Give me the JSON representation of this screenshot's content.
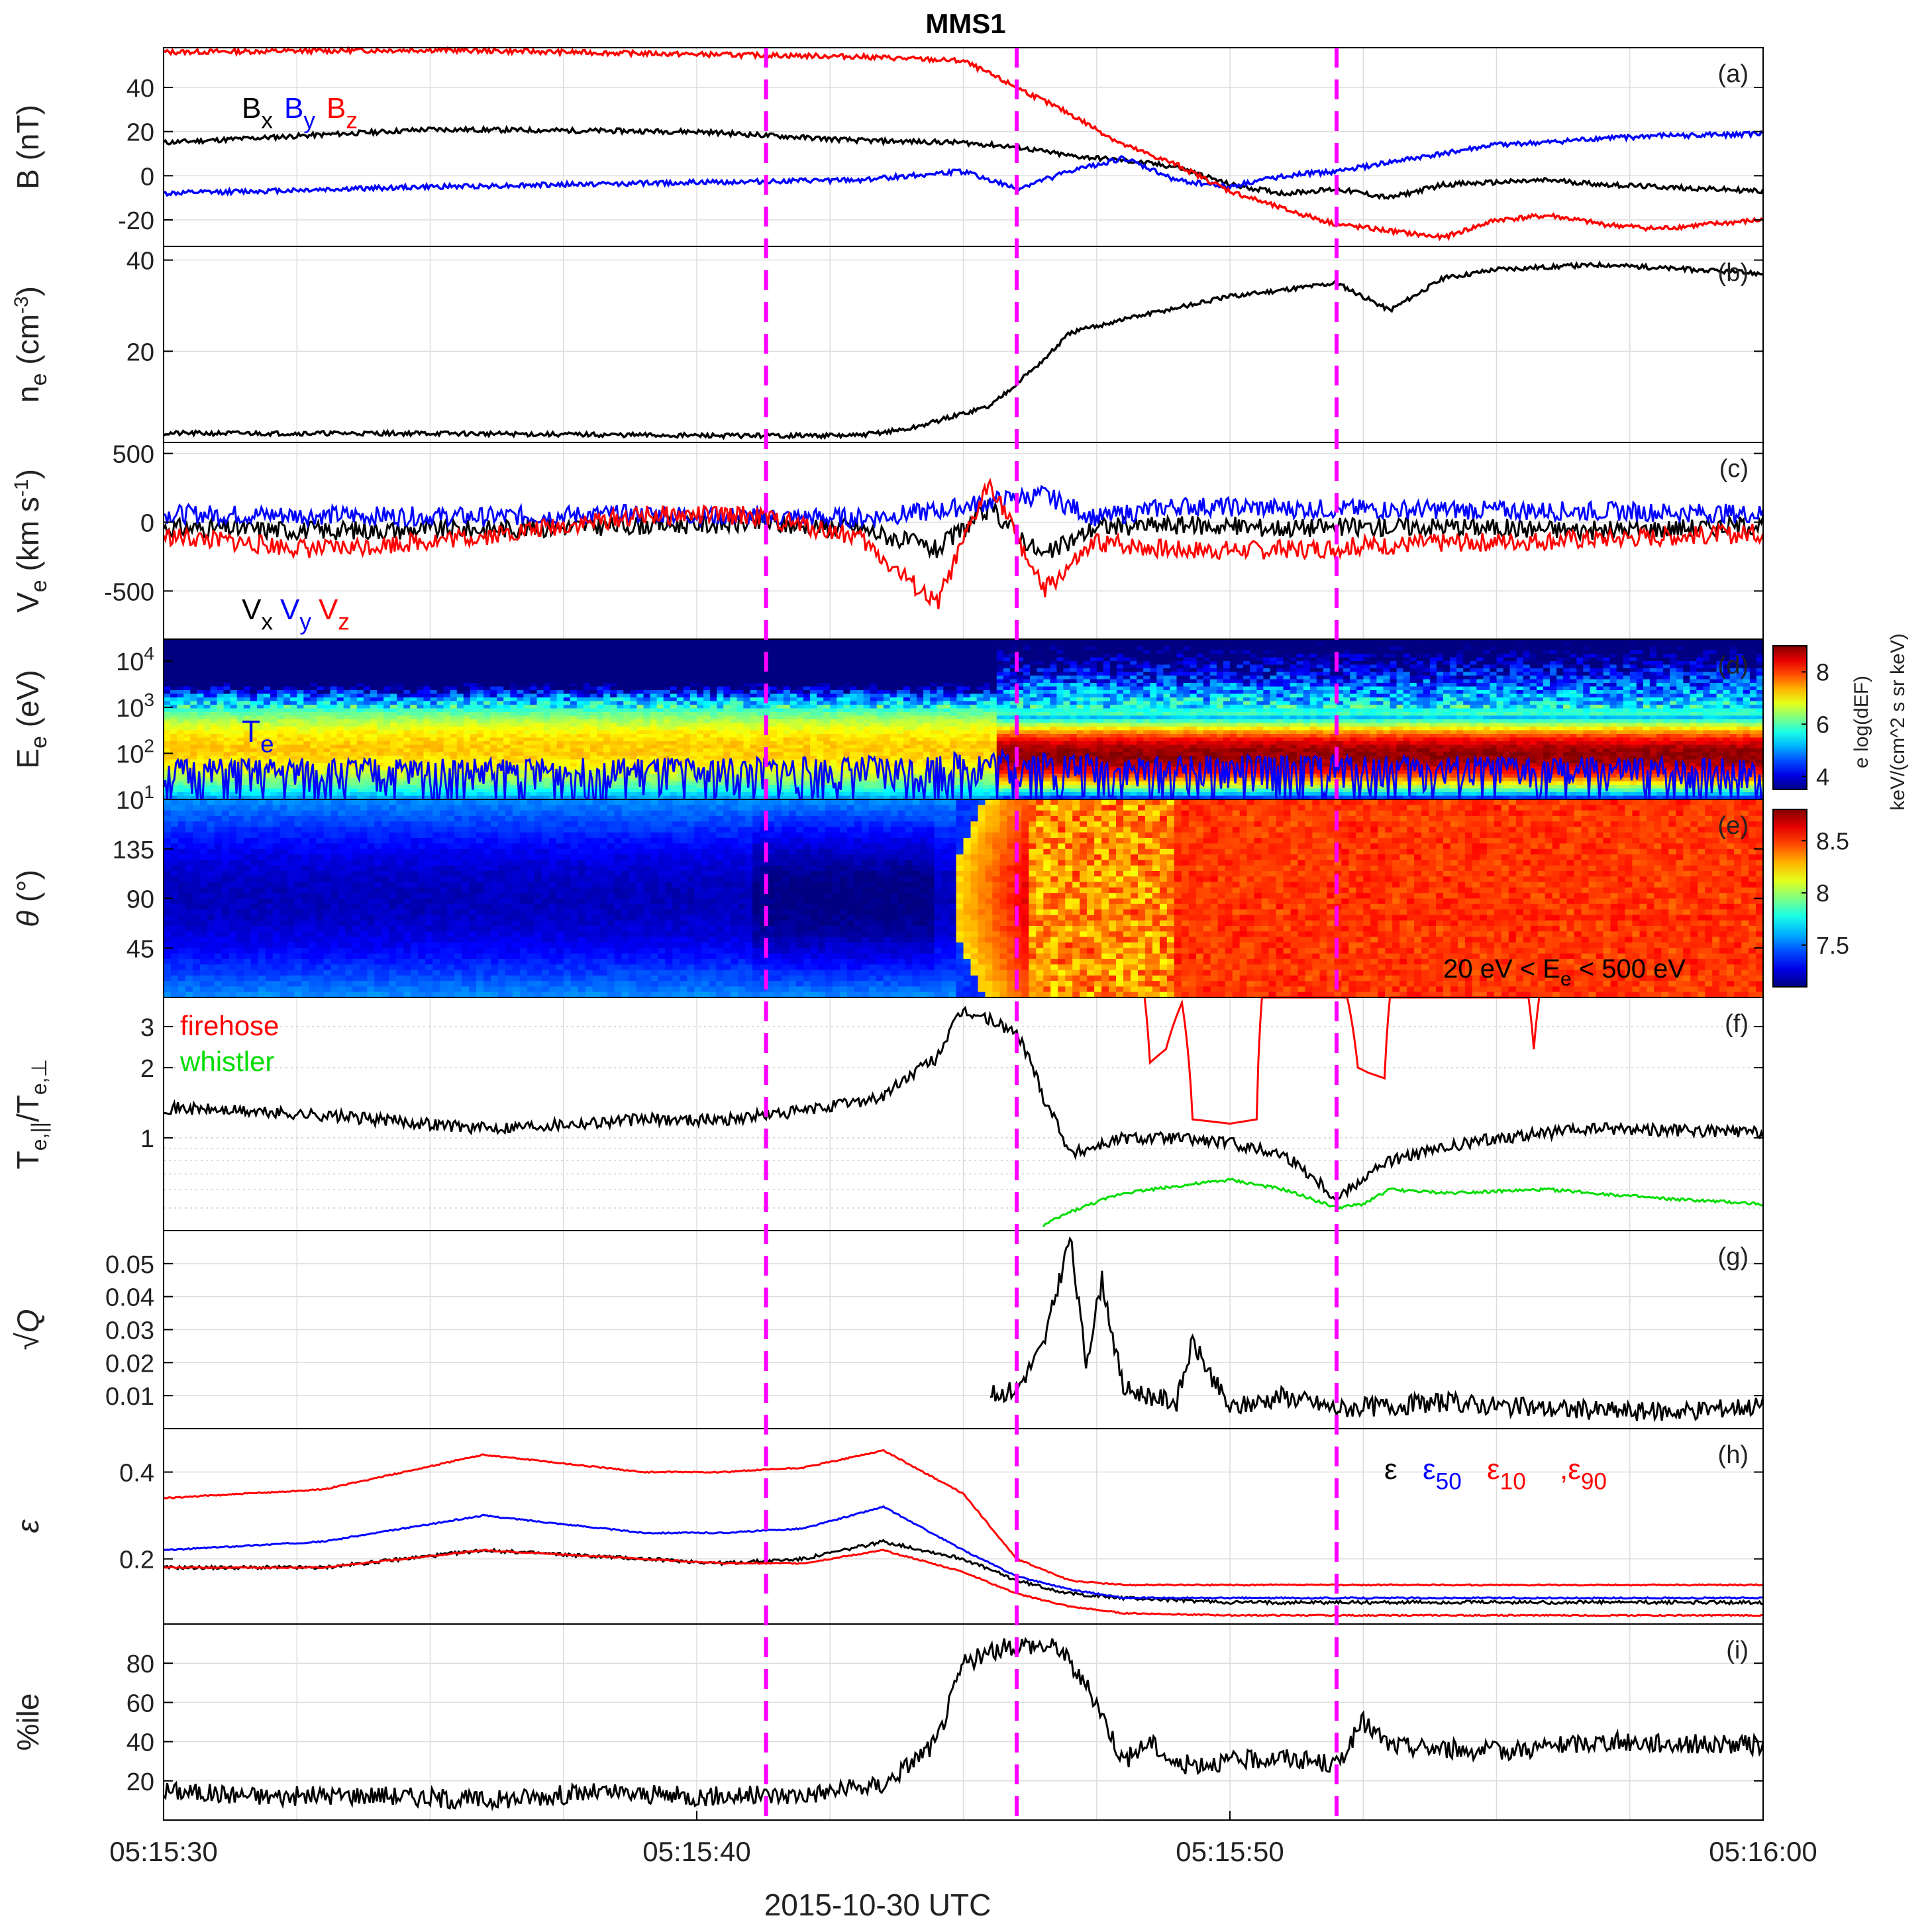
{
  "figure": {
    "title": "MMS1",
    "xlabel": "2015-10-30 UTC",
    "xticks": [
      "05:15:30",
      "05:15:40",
      "05:15:50",
      "05:16:00"
    ],
    "colors": {
      "black": "#000000",
      "blue": "#0000ff",
      "red": "#ff0000",
      "green": "#00dd00",
      "magenta": "#ff00ff"
    }
  },
  "chart_data": [
    {
      "panel": "(a)",
      "type": "line",
      "ylabel": "B (nT)",
      "ylim": [
        -32,
        58
      ],
      "yticks": [
        "40",
        "20",
        "0",
        "-20"
      ],
      "ytick_values": [
        40,
        20,
        0,
        -20
      ],
      "legend": [
        {
          "base": "B",
          "sub": "x",
          "color": "#000000"
        },
        {
          "base": "B",
          "sub": "y",
          "color": "#0000ff"
        },
        {
          "base": "B",
          "sub": "z",
          "color": "#ff0000"
        }
      ],
      "x_seconds": [
        0,
        5,
        10,
        13,
        15,
        16,
        17,
        18,
        19,
        20,
        21,
        22,
        23,
        24,
        25,
        26,
        27,
        28,
        30
      ],
      "series": [
        {
          "name": "Bx",
          "color": "#000000",
          "values": [
            15,
            21,
            20,
            16,
            15,
            13,
            9,
            7,
            4,
            -4,
            -8,
            -6,
            -10,
            -4,
            -3,
            -2,
            -4,
            -5,
            -7
          ]
        },
        {
          "name": "By",
          "color": "#0000ff",
          "values": [
            -8,
            -5,
            -3,
            -2,
            2,
            -6,
            2,
            8,
            -2,
            -5,
            0,
            2,
            6,
            10,
            14,
            15,
            17,
            18,
            19
          ]
        },
        {
          "name": "Bz",
          "color": "#ff0000",
          "values": [
            56,
            57,
            55,
            54,
            52,
            40,
            28,
            14,
            5,
            -7,
            -15,
            -22,
            -25,
            -28,
            -20,
            -18,
            -22,
            -24,
            -20
          ]
        }
      ]
    },
    {
      "panel": "(b)",
      "type": "line",
      "ylabel": "n_e (cm^-3)",
      "ylim": [
        0,
        43
      ],
      "yticks": [
        "40",
        "20"
      ],
      "ytick_values": [
        40,
        20
      ],
      "x_seconds": [
        0,
        5,
        10,
        13,
        14,
        15.5,
        16.5,
        17,
        18,
        20,
        22,
        23,
        24,
        25,
        27,
        30
      ],
      "series": [
        {
          "name": "ne",
          "color": "#000000",
          "values": [
            2,
            2,
            1.5,
            1.5,
            3,
            8,
            18,
            24,
            27,
            32,
            35,
            29,
            36,
            38,
            39,
            37
          ]
        }
      ]
    },
    {
      "panel": "(c)",
      "type": "line",
      "ylabel": "V_e (km s^-1)",
      "ylim": [
        -850,
        580
      ],
      "yticks": [
        "500",
        "0",
        "-500"
      ],
      "ytick_values": [
        500,
        0,
        -500
      ],
      "legend": [
        {
          "base": "V",
          "sub": "x",
          "color": "#000000"
        },
        {
          "base": "V",
          "sub": "y",
          "color": "#0000ff"
        },
        {
          "base": "V",
          "sub": "z",
          "color": "#ff0000"
        }
      ],
      "x_seconds": [
        0,
        3,
        6,
        9,
        11,
        13,
        14.5,
        15.5,
        16.5,
        17.5,
        19,
        21,
        24,
        27,
        30
      ],
      "series": [
        {
          "name": "Vx",
          "color": "#000000",
          "values": [
            -40,
            -60,
            -50,
            -20,
            -10,
            -40,
            -200,
            100,
            -250,
            -30,
            -20,
            -40,
            -30,
            -60,
            -20
          ]
        },
        {
          "name": "Vy",
          "color": "#0000ff",
          "values": [
            60,
            50,
            40,
            60,
            40,
            30,
            80,
            150,
            200,
            30,
            120,
            100,
            90,
            80,
            60
          ]
        },
        {
          "name": "Vz",
          "color": "#ff0000",
          "values": [
            -100,
            -200,
            -100,
            50,
            50,
            -100,
            -600,
            300,
            -500,
            -150,
            -200,
            -200,
            -150,
            -120,
            -80
          ]
        }
      ]
    },
    {
      "panel": "(d)",
      "type": "heatmap",
      "ylabel": "E_e (eV)",
      "yscale": "log",
      "ylim": [
        10,
        30000
      ],
      "yticks": [
        "10^4",
        "10^3",
        "10^2",
        "10^1"
      ],
      "curve_label": {
        "base": "T",
        "sub": "e",
        "color": "#0000ff"
      },
      "colorbar": {
        "label_line1": "e log(dEF)",
        "label_line2": "keV/(cm^2 s sr keV)",
        "ticks": [
          "8",
          "6",
          "4"
        ],
        "tick_values": [
          8,
          6,
          4
        ],
        "range": [
          3.5,
          9
        ]
      },
      "x_seconds": [
        0,
        5,
        10,
        14,
        15,
        16,
        18,
        20,
        22,
        24,
        26,
        28,
        30
      ],
      "series": [
        {
          "name": "Te",
          "color": "#0000ff",
          "values": [
            38,
            40,
            40,
            44,
            55,
            60,
            42,
            45,
            47,
            44,
            42,
            40,
            40
          ]
        }
      ]
    },
    {
      "panel": "(e)",
      "type": "heatmap",
      "ylabel": "θ (°)",
      "ylim": [
        0,
        180
      ],
      "yticks": [
        "135",
        "90",
        "45"
      ],
      "ytick_values": [
        135,
        90,
        45
      ],
      "annotation": "20 eV < E_e < 500 eV",
      "colorbar": {
        "label_line1": "e log(dEF)",
        "label_line2": "keV/(cm^2 s sr keV)",
        "ticks": [
          "8.5",
          "8",
          "7.5"
        ],
        "tick_values": [
          8.5,
          8,
          7.5
        ],
        "range": [
          7.1,
          8.8
        ]
      }
    },
    {
      "panel": "(f)",
      "type": "line",
      "ylabel": "T_e,||/T_e,⊥",
      "yscale": "log",
      "ylim": [
        0.4,
        4
      ],
      "yticks": [
        "3",
        "2",
        "1"
      ],
      "ytick_values": [
        3,
        2,
        1
      ],
      "legend": [
        {
          "text": "firehose",
          "color": "#ff0000"
        },
        {
          "text": "whistler",
          "color": "#00dd00"
        }
      ],
      "x_seconds": [
        0,
        3,
        6,
        9,
        10.5,
        12,
        13.5,
        14.5,
        15,
        15.5,
        16,
        16.5,
        17,
        18,
        19,
        20,
        21,
        22,
        23,
        24,
        25,
        27,
        30
      ],
      "series": [
        {
          "name": "T ratio",
          "color": "#000000",
          "values": [
            1.35,
            1.25,
            1.1,
            1.2,
            1.2,
            1.3,
            1.5,
            2.2,
            3.5,
            3.2,
            2.8,
            1.5,
            0.85,
            1.0,
            1.0,
            0.95,
            0.85,
            0.55,
            0.8,
            0.9,
            1.0,
            1.1,
            1.05
          ]
        },
        {
          "name": "firehose",
          "color": "#ff0000",
          "x_seconds": [
            18.4,
            18.5,
            18.8,
            19.1,
            19.3,
            20,
            20.5,
            20.6,
            22.2,
            22.4,
            22.6,
            22.9,
            23.0,
            25.6,
            25.7,
            25.8
          ],
          "values": [
            4,
            2.1,
            2.4,
            3.8,
            1.2,
            1.15,
            1.2,
            4,
            4,
            2.0,
            1.9,
            1.8,
            4,
            4,
            2.4,
            4
          ]
        },
        {
          "name": "whistler",
          "color": "#00dd00",
          "x_seconds": [
            16.5,
            17,
            18,
            19,
            20,
            21,
            22,
            22.5,
            23,
            24,
            26,
            28,
            30
          ],
          "values": [
            0.42,
            0.48,
            0.58,
            0.62,
            0.66,
            0.6,
            0.5,
            0.52,
            0.6,
            0.58,
            0.6,
            0.55,
            0.52
          ]
        }
      ]
    },
    {
      "panel": "(g)",
      "type": "line",
      "ylabel": "√Q",
      "ylim": [
        0,
        0.06
      ],
      "yticks": [
        "0.05",
        "0.04",
        "0.03",
        "0.02",
        "0.01"
      ],
      "ytick_values": [
        0.05,
        0.04,
        0.03,
        0.02,
        0.01
      ],
      "x_seconds": [
        15.5,
        16,
        16.5,
        17,
        17.3,
        17.6,
        18,
        19,
        19.3,
        20,
        21,
        22,
        24,
        26,
        28,
        30
      ],
      "series": [
        {
          "name": "sqrtQ",
          "color": "#000000",
          "values": [
            0.01,
            0.012,
            0.025,
            0.058,
            0.02,
            0.045,
            0.012,
            0.008,
            0.026,
            0.006,
            0.01,
            0.006,
            0.008,
            0.006,
            0.005,
            0.007
          ]
        }
      ]
    },
    {
      "panel": "(h)",
      "type": "line",
      "ylabel": "ε",
      "ylim": [
        0.05,
        0.5
      ],
      "yticks": [
        "0.4",
        "0.2"
      ],
      "ytick_values": [
        0.4,
        0.2
      ],
      "legend": [
        {
          "base": "ε",
          "sub": "",
          "color": "#000000"
        },
        {
          "base": "ε",
          "sub": "50",
          "color": "#0000ff"
        },
        {
          "base": "ε",
          "sub": "10",
          "color": "#ff0000"
        },
        {
          "base": ",ε",
          "sub": "90",
          "color": "#ff0000"
        }
      ],
      "x_seconds": [
        0,
        3,
        6,
        9,
        10.5,
        12,
        13.5,
        15,
        16,
        17,
        18,
        20,
        24,
        30
      ],
      "series": [
        {
          "name": "ε",
          "color": "#000000",
          "values": [
            0.18,
            0.18,
            0.22,
            0.2,
            0.19,
            0.2,
            0.24,
            0.2,
            0.15,
            0.12,
            0.11,
            0.1,
            0.1,
            0.1
          ]
        },
        {
          "name": "ε50",
          "color": "#0000ff",
          "values": [
            0.22,
            0.24,
            0.3,
            0.26,
            0.26,
            0.27,
            0.32,
            0.22,
            0.16,
            0.13,
            0.11,
            0.11,
            0.11,
            0.11
          ]
        },
        {
          "name": "ε10",
          "color": "#ff0000",
          "values": [
            0.18,
            0.18,
            0.22,
            0.2,
            0.19,
            0.19,
            0.22,
            0.17,
            0.12,
            0.09,
            0.075,
            0.07,
            0.07,
            0.07
          ]
        },
        {
          "name": "ε90",
          "color": "#ff0000",
          "values": [
            0.34,
            0.36,
            0.44,
            0.4,
            0.4,
            0.41,
            0.45,
            0.35,
            0.2,
            0.15,
            0.14,
            0.14,
            0.14,
            0.14
          ]
        }
      ]
    },
    {
      "panel": "(i)",
      "type": "line",
      "ylabel": "%ile",
      "ylim": [
        0,
        100
      ],
      "yticks": [
        "80",
        "60",
        "40",
        "20"
      ],
      "ytick_values": [
        80,
        60,
        40,
        20
      ],
      "x_seconds": [
        0,
        2,
        4,
        6,
        8,
        10,
        12,
        13.5,
        14.5,
        15,
        16,
        16.8,
        17.5,
        18,
        18.5,
        19,
        20,
        21,
        22,
        22.5,
        23,
        25,
        27,
        30
      ],
      "series": [
        {
          "name": "percentile",
          "color": "#000000",
          "values": [
            15,
            12,
            13,
            10,
            14,
            12,
            13,
            18,
            40,
            80,
            90,
            88,
            60,
            30,
            40,
            28,
            30,
            32,
            28,
            50,
            38,
            35,
            40,
            38
          ]
        }
      ]
    }
  ],
  "vlines_seconds": [
    11.3,
    16.0,
    22.0
  ],
  "vline_color": "#ff00ff"
}
